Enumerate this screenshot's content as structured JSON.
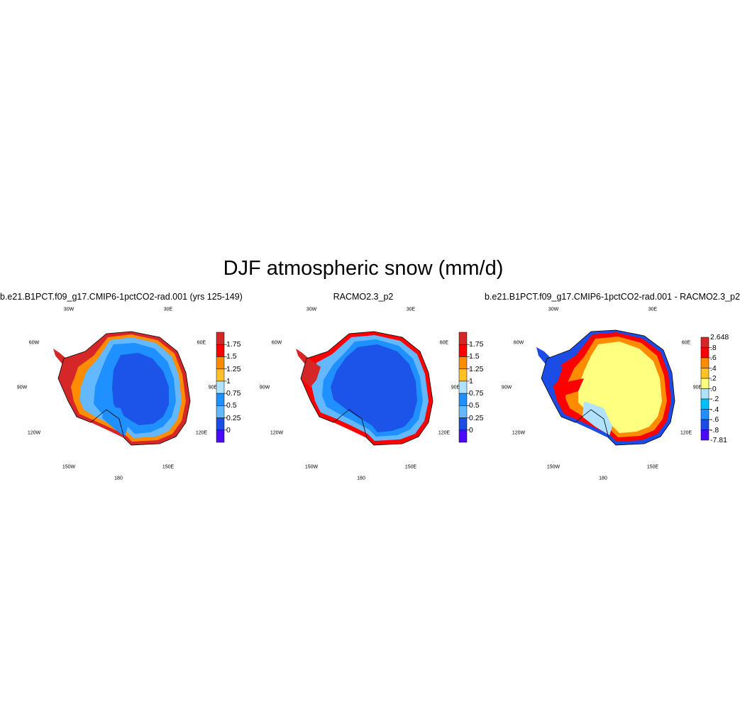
{
  "title": "DJF atmospheric snow (mm/d)",
  "panels": [
    {
      "title": "b.e21.B1PCT.f09_g17.CMIP6-1pctCO2-rad.001 (yrs 125-149)",
      "lon_labels": [
        "30W",
        "30E",
        "60W",
        "60E",
        "90W",
        "90E",
        "120W",
        "120E",
        "150W",
        "150E",
        "180"
      ],
      "colorbar": {
        "labels": [
          "1.75",
          "1.5",
          "1.25",
          "1",
          "0.75",
          "0.5",
          "0.25",
          "0"
        ],
        "colors": [
          "#d62728",
          "#ff0000",
          "#ff8c00",
          "#ffc125",
          "#b0e2ff",
          "#1e90ff",
          "#63b8ff",
          "#1c4ce6",
          "#4b0aff"
        ]
      }
    },
    {
      "title": "RACMO2.3_p2",
      "lon_labels": [
        "30W",
        "30E",
        "60W",
        "60E",
        "90W",
        "90E",
        "120W",
        "120E",
        "150W",
        "150E",
        "180"
      ],
      "colorbar": {
        "labels": [
          "1.75",
          "1.5",
          "1.25",
          "1",
          "0.75",
          "0.5",
          "0.25",
          "0"
        ],
        "colors": [
          "#d62728",
          "#ff0000",
          "#ff8c00",
          "#ffc125",
          "#b0e2ff",
          "#1e90ff",
          "#63b8ff",
          "#1c4ce6",
          "#4b0aff"
        ]
      }
    },
    {
      "title": "b.e21.B1PCT.f09_g17.CMIP6-1pctCO2-rad.001 - RACMO2.3_p2",
      "lon_labels": [
        "30W",
        "30E",
        "60W",
        "60E",
        "90W",
        "90E",
        "120W",
        "120E",
        "150W",
        "150E",
        "180"
      ],
      "colorbar": {
        "labels": [
          "2.648",
          ".8",
          ".6",
          ".4",
          ".2",
          ".0",
          "-.2",
          "-.4",
          "-.6",
          "-.8",
          "-7.81"
        ],
        "colors": [
          "#d62728",
          "#ff0000",
          "#ff8c00",
          "#ffc125",
          "#ffff80",
          "#b0e2ff",
          "#00bfff",
          "#1e90ff",
          "#1c4ce6",
          "#4b0aff"
        ]
      }
    }
  ]
}
